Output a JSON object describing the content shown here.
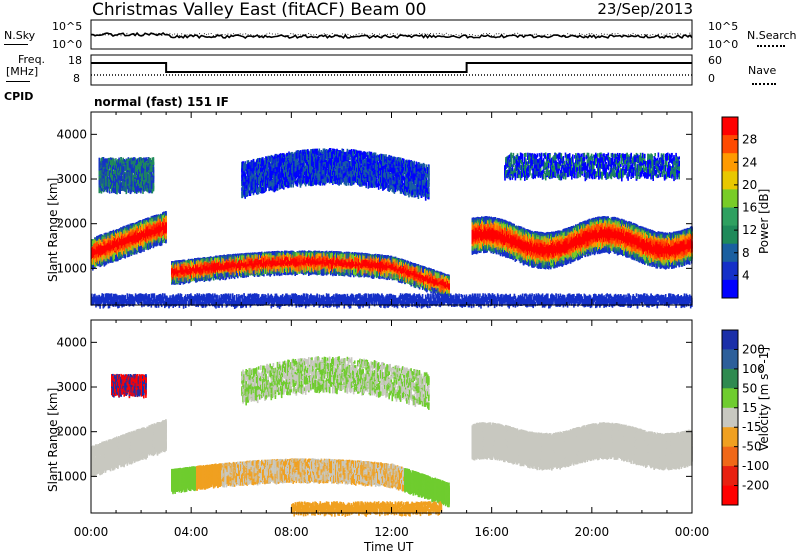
{
  "header": {
    "title": "Christmas Valley East (fitACF) Beam 00",
    "date": "23/Sep/2013"
  },
  "noise_panel": {
    "left_label": "N.Sky",
    "right_label": "N.Search",
    "left_ticks": [
      "10^5",
      "10^0"
    ],
    "right_ticks": [
      "10^5",
      "10^0"
    ]
  },
  "freq_panel": {
    "left_label_line1": "Freq.",
    "left_label_line2": "[MHz]",
    "right_label": "Nave",
    "left_ticks": [
      "18",
      "8"
    ],
    "right_ticks": [
      "60",
      "0"
    ]
  },
  "cpid": {
    "label": "CPID",
    "text": "normal (fast) 151 IF"
  },
  "chart_data": [
    {
      "type": "heatmap",
      "name": "Power",
      "ylabel": "Slant Range [km]",
      "xlabel": "Time UT",
      "x_ticks": [
        "00:00",
        "04:00",
        "08:00",
        "12:00",
        "16:00",
        "20:00",
        "00:00"
      ],
      "ylim": [
        180,
        4500
      ],
      "y_ticks": [
        1000,
        2000,
        3000,
        4000
      ],
      "colorbar_label": "Power [dB]",
      "colorbar_ticks": [
        "28",
        "24",
        "20",
        "16",
        "12",
        "8",
        "4"
      ],
      "colorbar_colors": [
        "#ff0000",
        "#ff4a00",
        "#ff9a00",
        "#e8c800",
        "#78cc28",
        "#2fa060",
        "#1f8a5a",
        "#1a5fa0",
        "#1530c8",
        "#0000ff"
      ]
    },
    {
      "type": "heatmap",
      "name": "Velocity",
      "ylabel": "Slant Range [km]",
      "xlabel": "Time UT",
      "x_ticks": [
        "00:00",
        "04:00",
        "08:00",
        "12:00",
        "16:00",
        "20:00",
        "00:00"
      ],
      "ylim": [
        180,
        4500
      ],
      "y_ticks": [
        1000,
        2000,
        3000,
        4000
      ],
      "colorbar_label": "Velocity [m s^-1]",
      "colorbar_ticks": [
        "200",
        "100",
        "50",
        "15",
        "-15",
        "-50",
        "-100",
        "-200"
      ],
      "colorbar_colors": [
        "#1b2fa8",
        "#2d5f9a",
        "#2f8a50",
        "#6fcc2f",
        "#c8c8c0",
        "#f0a020",
        "#f06818",
        "#e82010",
        "#ff0000"
      ]
    }
  ],
  "x_axis": {
    "label": "Time UT",
    "ticks": [
      "00:00",
      "04:00",
      "08:00",
      "12:00",
      "16:00",
      "20:00",
      "00:00"
    ]
  }
}
